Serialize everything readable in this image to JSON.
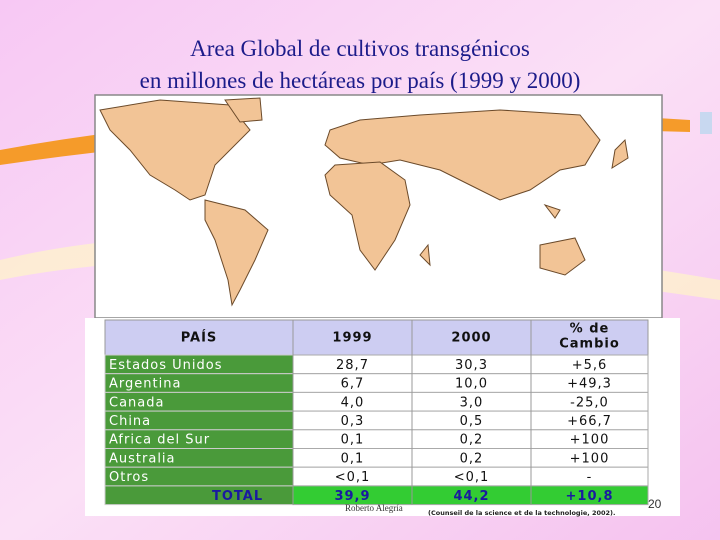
{
  "title": {
    "line1": "Area Global de cultivos transgénicos",
    "line2": "en millones de hectáreas por país (1999 y 2000)"
  },
  "table": {
    "header": [
      "PAÍS",
      "1999",
      "2000",
      [
        "% de",
        "Cambio"
      ]
    ],
    "rows": [
      [
        "Estados Unidos",
        "28,7",
        "30,3",
        "+5,6"
      ],
      [
        "Argentina",
        "6,7",
        "10,0",
        "+49,3"
      ],
      [
        "Canada",
        "4,0",
        "3,0",
        "-25,0"
      ],
      [
        "China",
        "0,3",
        "0,5",
        "+66,7"
      ],
      [
        "Africa del Sur",
        "0,1",
        "0,2",
        "+100"
      ],
      [
        "Australia",
        "0,1",
        "0,2",
        "+100"
      ],
      [
        "Otros",
        "<0,1",
        "<0,1",
        "-"
      ]
    ],
    "total": [
      "TOTAL",
      "39,9",
      "44,2",
      "+10,8"
    ]
  },
  "footer": {
    "author": "Roberto Alegría",
    "source": "(Counseil de la science et de la technologie, 2002).",
    "page": "20"
  }
}
